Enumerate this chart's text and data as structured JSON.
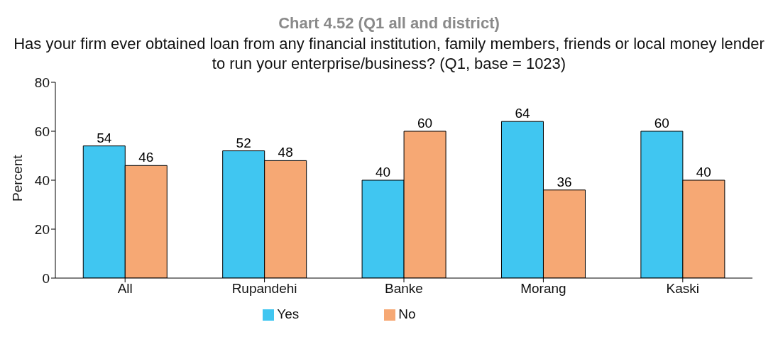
{
  "chart_data": {
    "type": "bar",
    "title": "Chart 4.52 (Q1 all and district)",
    "subtitle": "Has your firm ever obtained loan from any financial institution, family members, friends or local money lender to run your enterprise/business? (Q1, base = 1023)",
    "ylabel": "Percent",
    "categories": [
      "All",
      "Rupandehi",
      "Banke",
      "Morang",
      "Kaski"
    ],
    "series": [
      {
        "name": "Yes",
        "color": "#40c6f1",
        "values": [
          54,
          52,
          40,
          64,
          60
        ]
      },
      {
        "name": "No",
        "color": "#f6a874",
        "values": [
          46,
          48,
          60,
          36,
          40
        ]
      }
    ],
    "ylim": [
      0,
      80
    ],
    "yticks": [
      0,
      20,
      40,
      60,
      80
    ],
    "grid": false,
    "legend": "bottom",
    "data_labels": true
  }
}
